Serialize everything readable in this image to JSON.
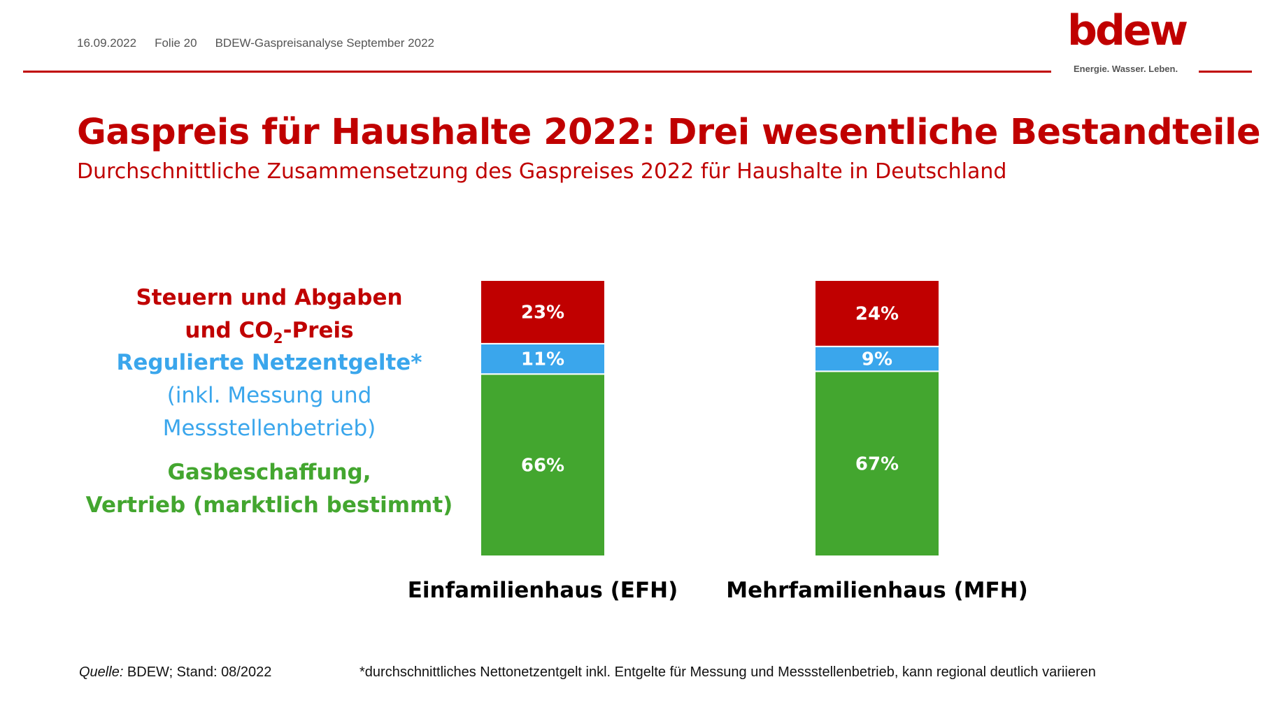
{
  "header": {
    "date": "16.09.2022",
    "slide": "Folie 20",
    "doc_title": "BDEW-Gaspreisanalyse September 2022"
  },
  "logo": {
    "word": "bdew",
    "tagline": "Energie. Wasser. Leben."
  },
  "title": "Gaspreis für Haushalte 2022: Drei wesentliche Bestandteile",
  "subtitle": "Durchschnittliche Zusammensetzung des Gaspreises 2022 für Haushalte in Deutschland",
  "legend": {
    "taxes_line1": "Steuern und Abgaben",
    "taxes_line2_pre": "und CO",
    "taxes_line2_sub": "2",
    "taxes_line2_post": "-Preis",
    "grid_line1": "Regulierte Netzentgelte*",
    "grid_line2": "(inkl. Messung und",
    "grid_line3": "Messstellenbetrieb)",
    "supply_line1": "Gasbeschaffung,",
    "supply_line2": "Vertrieb (marktlich bestimmt)"
  },
  "footer": {
    "source_label": "Quelle:",
    "source_text": " BDEW; Stand: 08/2022",
    "footnote": "*durchschnittliches Nettonetzentgelt inkl. Entgelte für Messung und Messstellenbetrieb, kann regional deutlich variieren"
  },
  "colors": {
    "red": "#c00000",
    "blue": "#3aa6ec",
    "green": "#43a62f"
  },
  "chart_data": {
    "type": "bar",
    "stacked": true,
    "normalized_percent": true,
    "categories": [
      "Einfamilienhaus (EFH)",
      "Mehrfamilienhaus (MFH)"
    ],
    "series": [
      {
        "name": "Gasbeschaffung, Vertrieb (marktlich bestimmt)",
        "key": "supply",
        "color": "#43a62f",
        "values": [
          66,
          67
        ],
        "labels": [
          "66%",
          "67%"
        ]
      },
      {
        "name": "Regulierte Netzentgelte*",
        "key": "grid",
        "color": "#3aa6ec",
        "values": [
          11,
          9
        ],
        "labels": [
          "11%",
          "9%"
        ]
      },
      {
        "name": "Steuern und Abgaben und CO2-Preis",
        "key": "taxes",
        "color": "#c00000",
        "values": [
          23,
          24
        ],
        "labels": [
          "23%",
          "24%"
        ]
      }
    ],
    "ylim": [
      0,
      100
    ],
    "grid": false,
    "legend_position": "left"
  }
}
